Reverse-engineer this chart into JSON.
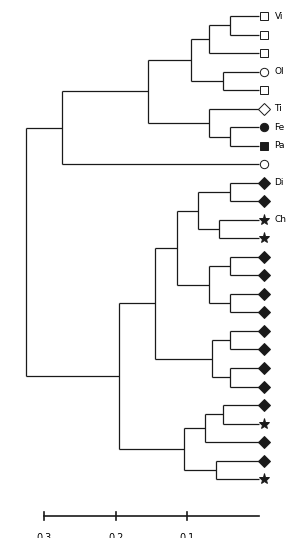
{
  "background_color": "#ffffff",
  "line_color": "#1a1a1a",
  "lw": 0.9,
  "leaf_symbols": [
    {
      "marker": "s",
      "filled": false,
      "label": "Vi"
    },
    {
      "marker": "s",
      "filled": false,
      "label": ""
    },
    {
      "marker": "s",
      "filled": false,
      "label": ""
    },
    {
      "marker": "o",
      "filled": false,
      "label": "Ol"
    },
    {
      "marker": "s",
      "filled": false,
      "label": ""
    },
    {
      "marker": "D",
      "filled": false,
      "label": "Ti"
    },
    {
      "marker": "o",
      "filled": true,
      "label": "Fe"
    },
    {
      "marker": "s",
      "filled": true,
      "label": "Pa"
    },
    {
      "marker": "o",
      "filled": false,
      "label": ""
    },
    {
      "marker": "D",
      "filled": true,
      "label": "Di"
    },
    {
      "marker": "D",
      "filled": true,
      "label": ""
    },
    {
      "marker": "*",
      "filled": true,
      "label": "Ch"
    },
    {
      "marker": "*",
      "filled": true,
      "label": ""
    },
    {
      "marker": "D",
      "filled": true,
      "label": ""
    },
    {
      "marker": "D",
      "filled": true,
      "label": ""
    },
    {
      "marker": "D",
      "filled": true,
      "label": ""
    },
    {
      "marker": "D",
      "filled": true,
      "label": ""
    },
    {
      "marker": "D",
      "filled": true,
      "label": ""
    },
    {
      "marker": "D",
      "filled": true,
      "label": ""
    },
    {
      "marker": "D",
      "filled": true,
      "label": ""
    },
    {
      "marker": "D",
      "filled": true,
      "label": ""
    },
    {
      "marker": "D",
      "filled": true,
      "label": ""
    },
    {
      "marker": "*",
      "filled": true,
      "label": ""
    },
    {
      "marker": "D",
      "filled": true,
      "label": ""
    },
    {
      "marker": "D",
      "filled": true,
      "label": ""
    },
    {
      "marker": "*",
      "filled": true,
      "label": ""
    }
  ]
}
